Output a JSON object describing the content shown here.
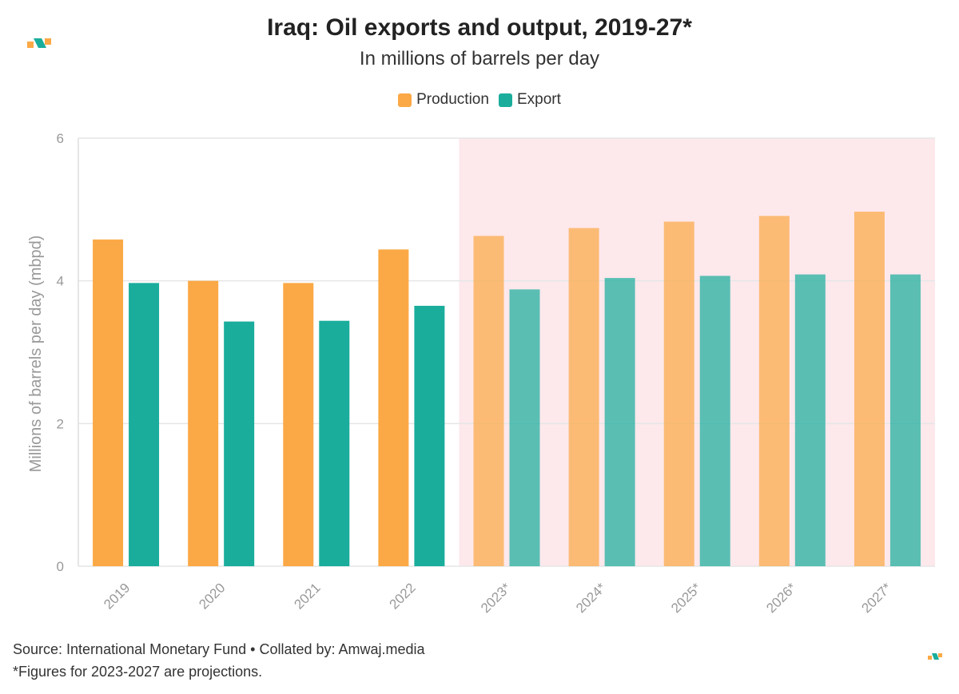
{
  "colors": {
    "production": "#fba946",
    "export": "#1aad9c",
    "projection_band": "#fde8ec",
    "grid": "#e6e6e6",
    "axis_text": "#999999"
  },
  "header": {
    "title": "Iraq: Oil exports and output, 2019-27*",
    "subtitle": "In millions of barrels per day"
  },
  "legend": [
    {
      "label": "Production",
      "color": "#fba946"
    },
    {
      "label": "Export",
      "color": "#1aad9c"
    }
  ],
  "footer": {
    "source": "Source: International Monetary Fund • Collated by: Amwaj.media",
    "note": "*Figures for 2023-2027 are projections."
  },
  "chart_data": {
    "type": "bar",
    "title": "Iraq: Oil exports and output, 2019-27*",
    "subtitle": "In millions of barrels per day",
    "xlabel": "",
    "ylabel": "Millions of barrels per day (mbpd)",
    "ylim": [
      0,
      6
    ],
    "yticks": [
      0,
      2,
      4,
      6
    ],
    "categories": [
      "2019",
      "2020",
      "2021",
      "2022",
      "2023*",
      "2024*",
      "2025*",
      "2026*",
      "2027*"
    ],
    "projection_start_index": 4,
    "series": [
      {
        "name": "Production",
        "values": [
          4.58,
          4.0,
          3.97,
          4.44,
          4.63,
          4.74,
          4.83,
          4.91,
          4.97
        ]
      },
      {
        "name": "Export",
        "values": [
          3.97,
          3.43,
          3.44,
          3.65,
          3.88,
          4.04,
          4.07,
          4.09,
          4.09
        ]
      }
    ],
    "legend": "top-center",
    "grid": true
  }
}
